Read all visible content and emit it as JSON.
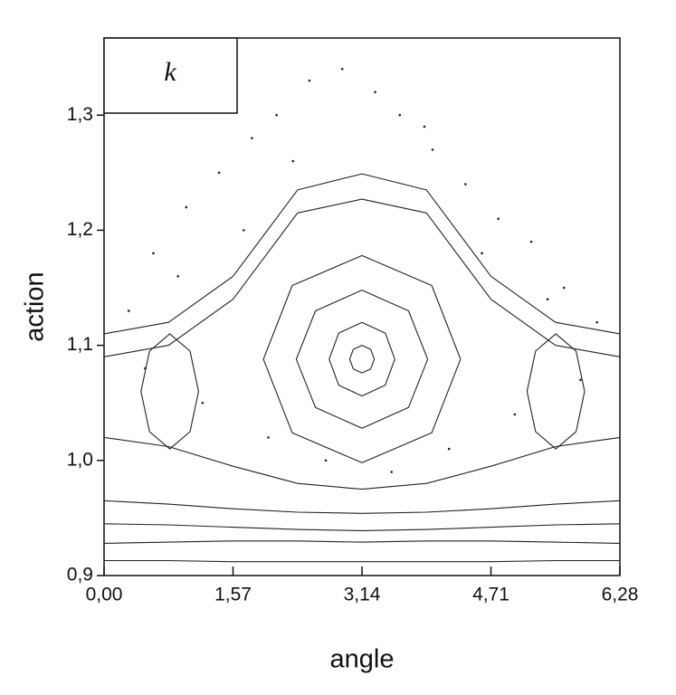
{
  "chart_data": {
    "type": "line",
    "panel_label": "k",
    "x_label": "angle",
    "y_label": "action",
    "xlim": [
      0,
      6.28
    ],
    "ylim": [
      0.9,
      1.367
    ],
    "xticks": [
      {
        "value": 0,
        "label": "0,00"
      },
      {
        "value": 1.57,
        "label": "1,57"
      },
      {
        "value": 3.14,
        "label": "3,14"
      },
      {
        "value": 4.71,
        "label": "4,71"
      },
      {
        "value": 6.28,
        "label": "6,28"
      }
    ],
    "yticks": [
      {
        "value": 0.9,
        "label": "0,9"
      },
      {
        "value": 1.0,
        "label": "1,0"
      },
      {
        "value": 1.1,
        "label": "1,1"
      },
      {
        "value": 1.2,
        "label": "1,2"
      },
      {
        "value": 1.3,
        "label": "1,3"
      }
    ],
    "series": [
      {
        "color": "#222",
        "x": [
          0,
          0.785,
          1.57,
          2.355,
          3.14,
          3.925,
          4.71,
          5.495,
          6.28
        ],
        "values": [
          1.11,
          1.12,
          1.16,
          1.235,
          1.249,
          1.235,
          1.16,
          1.12,
          1.11
        ]
      },
      {
        "color": "#222",
        "x": [
          0,
          0.785,
          1.57,
          2.355,
          3.14,
          3.925,
          4.71,
          5.495,
          6.28
        ],
        "values": [
          1.09,
          1.1,
          1.14,
          1.215,
          1.227,
          1.215,
          1.14,
          1.1,
          1.09
        ]
      },
      {
        "color": "#222",
        "x": [
          0,
          0.785,
          1.57,
          2.355,
          3.14,
          3.925,
          4.71,
          5.495,
          6.28
        ],
        "values": [
          1.02,
          1.012,
          0.995,
          0.98,
          0.975,
          0.98,
          0.995,
          1.012,
          1.02
        ]
      },
      {
        "color": "#222",
        "x": [
          0,
          0.785,
          1.57,
          2.355,
          3.14,
          3.925,
          4.71,
          5.495,
          6.28
        ],
        "values": [
          0.965,
          0.962,
          0.958,
          0.955,
          0.954,
          0.955,
          0.958,
          0.962,
          0.965
        ]
      },
      {
        "color": "#222",
        "x": [
          0,
          0.785,
          1.57,
          2.355,
          3.14,
          3.925,
          4.71,
          5.495,
          6.28
        ],
        "values": [
          0.945,
          0.944,
          0.942,
          0.94,
          0.939,
          0.94,
          0.942,
          0.944,
          0.945
        ]
      },
      {
        "color": "#222",
        "x": [
          0,
          0.785,
          1.57,
          2.355,
          3.14,
          3.925,
          4.71,
          5.495,
          6.28
        ],
        "values": [
          0.928,
          0.929,
          0.93,
          0.93,
          0.929,
          0.93,
          0.93,
          0.929,
          0.928
        ]
      },
      {
        "color": "#222",
        "x": [
          0,
          0.785,
          1.57,
          2.355,
          3.14,
          3.925,
          4.71,
          5.495,
          6.28
        ],
        "values": [
          0.913,
          0.913,
          0.912,
          0.912,
          0.912,
          0.912,
          0.912,
          0.913,
          0.913
        ]
      },
      {
        "color": "#222",
        "x": [
          3.29,
          3.246,
          3.14,
          3.034,
          2.99,
          3.034,
          3.14,
          3.246,
          3.29
        ],
        "values": [
          1.088,
          1.0965,
          1.1,
          1.0965,
          1.088,
          1.0795,
          1.076,
          1.0795,
          1.088
        ]
      },
      {
        "color": "#222",
        "x": [
          3.54,
          3.423,
          3.14,
          2.857,
          2.74,
          2.857,
          3.14,
          3.423,
          3.54
        ],
        "values": [
          1.088,
          1.1106,
          1.12,
          1.1106,
          1.088,
          1.0654,
          1.056,
          1.0654,
          1.088
        ]
      },
      {
        "color": "#222",
        "x": [
          3.94,
          3.706,
          3.14,
          2.574,
          2.34,
          2.574,
          3.14,
          3.706,
          3.94
        ],
        "values": [
          1.088,
          1.13,
          1.148,
          1.13,
          1.088,
          1.046,
          1.028,
          1.046,
          1.088
        ]
      },
      {
        "color": "#222",
        "x": [
          4.34,
          3.989,
          3.14,
          2.291,
          1.94,
          2.291,
          3.14,
          3.989,
          4.34
        ],
        "values": [
          1.088,
          1.152,
          1.178,
          1.152,
          1.088,
          1.024,
          0.998,
          1.024,
          1.088
        ]
      },
      {
        "color": "#222",
        "x": [
          1.15,
          1.047,
          0.8,
          0.553,
          0.45,
          0.553,
          0.8,
          1.047,
          1.15
        ],
        "values": [
          1.06,
          1.095,
          1.11,
          1.095,
          1.06,
          1.025,
          1.01,
          1.025,
          1.06
        ]
      },
      {
        "color": "#222",
        "x": [
          5.85,
          5.747,
          5.5,
          5.253,
          5.15,
          5.253,
          5.5,
          5.747,
          5.85
        ],
        "values": [
          1.06,
          1.095,
          1.11,
          1.095,
          1.06,
          1.025,
          1.01,
          1.025,
          1.06
        ]
      },
      {
        "color": "#222",
        "style": "points",
        "x": [
          0.3,
          0.6,
          1.0,
          1.4,
          1.8,
          2.1,
          2.5,
          2.9,
          3.3,
          3.6,
          4.0,
          4.4,
          4.8,
          5.2,
          5.6,
          6.0,
          0.5,
          1.2,
          2.0,
          2.7,
          3.5,
          4.2,
          5.0,
          5.8,
          1.7,
          4.6,
          2.3,
          3.9,
          0.9,
          5.4
        ],
        "values": [
          1.13,
          1.18,
          1.22,
          1.25,
          1.28,
          1.3,
          1.33,
          1.34,
          1.32,
          1.3,
          1.27,
          1.24,
          1.21,
          1.19,
          1.15,
          1.12,
          1.08,
          1.05,
          1.02,
          1.0,
          0.99,
          1.01,
          1.04,
          1.07,
          1.2,
          1.18,
          1.26,
          1.29,
          1.16,
          1.14
        ]
      }
    ]
  }
}
